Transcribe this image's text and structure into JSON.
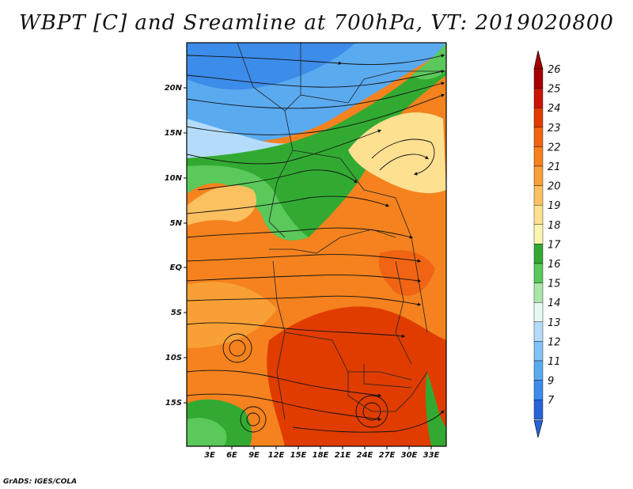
{
  "title": "WBPT [C] and Sreamline at 700hPa, VT: 2019020800",
  "credit": "GrADS: IGES/COLA",
  "map": {
    "lat_labels": [
      "20N",
      "15N",
      "10N",
      "5N",
      "EQ",
      "5S",
      "10S",
      "15S"
    ],
    "lon_labels": [
      "3E",
      "6E",
      "9E",
      "12E",
      "15E",
      "18E",
      "21E",
      "24E",
      "27E",
      "30E",
      "33E"
    ]
  },
  "colorbar": {
    "labels": [
      "26",
      "25",
      "24",
      "23",
      "22",
      "21",
      "20",
      "19",
      "18",
      "17",
      "16",
      "15",
      "14",
      "13",
      "12",
      "11",
      "9",
      "7"
    ],
    "colors": [
      "#a50000",
      "#c81400",
      "#e03c00",
      "#f06414",
      "#f5821e",
      "#f8a035",
      "#fbc060",
      "#fde090",
      "#fbf5b0",
      "#32aa32",
      "#5ac85a",
      "#aae6aa",
      "#e6faf0",
      "#b4dcfa",
      "#82c3f5",
      "#5aaaf0",
      "#3c8cea",
      "#2864d8"
    ]
  }
}
